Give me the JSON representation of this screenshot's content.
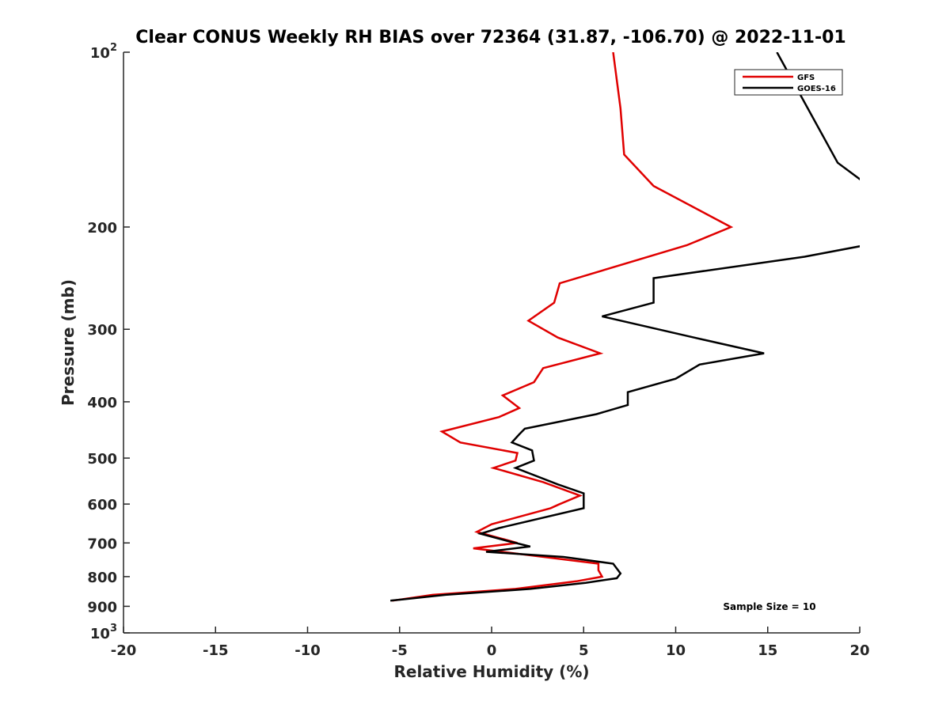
{
  "chart_data": {
    "type": "line",
    "title": "Clear CONUS Weekly RH BIAS over 72364 (31.87, -106.70) @ 2022-11-01",
    "xlabel": "Relative Humidity (%)",
    "ylabel": "Pressure (mb)",
    "xlim": [
      -20,
      20
    ],
    "ylim": [
      100,
      1000
    ],
    "y_scale": "log",
    "y_reversed": true,
    "grid": false,
    "legend_position": "top-right",
    "x_ticks": [
      -20,
      -15,
      -10,
      -5,
      0,
      5,
      10,
      15,
      20
    ],
    "x_tick_labels": [
      "-20",
      "-15",
      "-10",
      "-5",
      "0",
      "5",
      "10",
      "15",
      "20"
    ],
    "y_ticks": [
      100,
      200,
      300,
      400,
      500,
      600,
      700,
      800,
      900,
      1000
    ],
    "y_tick_labels": [
      {
        "base": "10",
        "exp": "2"
      },
      {
        "base": "200",
        "exp": ""
      },
      {
        "base": "300",
        "exp": ""
      },
      {
        "base": "400",
        "exp": ""
      },
      {
        "base": "500",
        "exp": ""
      },
      {
        "base": "600",
        "exp": ""
      },
      {
        "base": "700",
        "exp": ""
      },
      {
        "base": "800",
        "exp": ""
      },
      {
        "base": "900",
        "exp": ""
      },
      {
        "base": "10",
        "exp": "3"
      }
    ],
    "annotation": "Sample Size = 10",
    "series": [
      {
        "name": "GFS",
        "color": "#e00000",
        "points": [
          {
            "x": 6.6,
            "y": 100
          },
          {
            "x": 7.0,
            "y": 125
          },
          {
            "x": 7.2,
            "y": 150
          },
          {
            "x": 8.8,
            "y": 170
          },
          {
            "x": 13.0,
            "y": 200
          },
          {
            "x": 10.6,
            "y": 215
          },
          {
            "x": 3.7,
            "y": 250
          },
          {
            "x": 3.4,
            "y": 270
          },
          {
            "x": 2.0,
            "y": 290
          },
          {
            "x": 3.6,
            "y": 310
          },
          {
            "x": 5.9,
            "y": 330
          },
          {
            "x": 2.8,
            "y": 350
          },
          {
            "x": 2.3,
            "y": 370
          },
          {
            "x": 0.6,
            "y": 390
          },
          {
            "x": 1.5,
            "y": 410
          },
          {
            "x": 0.4,
            "y": 425
          },
          {
            "x": -2.7,
            "y": 450
          },
          {
            "x": -1.7,
            "y": 470
          },
          {
            "x": 1.4,
            "y": 490
          },
          {
            "x": 1.3,
            "y": 505
          },
          {
            "x": 0.1,
            "y": 520
          },
          {
            "x": 2.8,
            "y": 550
          },
          {
            "x": 4.8,
            "y": 580
          },
          {
            "x": 3.7,
            "y": 600
          },
          {
            "x": 3.2,
            "y": 610
          },
          {
            "x": 0.0,
            "y": 650
          },
          {
            "x": -0.8,
            "y": 670
          },
          {
            "x": 1.4,
            "y": 700
          },
          {
            "x": -1.0,
            "y": 715
          },
          {
            "x": 5.8,
            "y": 760
          },
          {
            "x": 5.8,
            "y": 780
          },
          {
            "x": 6.0,
            "y": 800
          },
          {
            "x": 4.6,
            "y": 815
          },
          {
            "x": 1.3,
            "y": 840
          },
          {
            "x": -3.2,
            "y": 860
          },
          {
            "x": -5.4,
            "y": 880
          }
        ]
      },
      {
        "name": "GOES-16",
        "color": "#000000",
        "points": [
          {
            "x": 15.5,
            "y": 100
          },
          {
            "x": 18.8,
            "y": 155
          },
          {
            "x": 20.5,
            "y": 170
          },
          {
            "x": 22.0,
            "y": 210
          },
          {
            "x": 17.0,
            "y": 225
          },
          {
            "x": 8.8,
            "y": 245
          },
          {
            "x": 8.8,
            "y": 270
          },
          {
            "x": 6.0,
            "y": 285
          },
          {
            "x": 11.0,
            "y": 310
          },
          {
            "x": 14.8,
            "y": 330
          },
          {
            "x": 11.3,
            "y": 345
          },
          {
            "x": 10.0,
            "y": 365
          },
          {
            "x": 7.4,
            "y": 385
          },
          {
            "x": 7.4,
            "y": 405
          },
          {
            "x": 5.7,
            "y": 420
          },
          {
            "x": 1.8,
            "y": 445
          },
          {
            "x": 1.5,
            "y": 455
          },
          {
            "x": 1.1,
            "y": 470
          },
          {
            "x": 2.2,
            "y": 485
          },
          {
            "x": 2.3,
            "y": 505
          },
          {
            "x": 1.3,
            "y": 520
          },
          {
            "x": 3.6,
            "y": 555
          },
          {
            "x": 5.0,
            "y": 575
          },
          {
            "x": 5.0,
            "y": 610
          },
          {
            "x": 0.4,
            "y": 660
          },
          {
            "x": -0.6,
            "y": 675
          },
          {
            "x": 0.9,
            "y": 695
          },
          {
            "x": 2.1,
            "y": 710
          },
          {
            "x": -0.3,
            "y": 725
          },
          {
            "x": 3.9,
            "y": 740
          },
          {
            "x": 6.6,
            "y": 760
          },
          {
            "x": 7.0,
            "y": 790
          },
          {
            "x": 6.8,
            "y": 805
          },
          {
            "x": 5.1,
            "y": 820
          },
          {
            "x": 2.1,
            "y": 840
          },
          {
            "x": -2.5,
            "y": 860
          },
          {
            "x": -5.5,
            "y": 880
          }
        ]
      }
    ]
  }
}
